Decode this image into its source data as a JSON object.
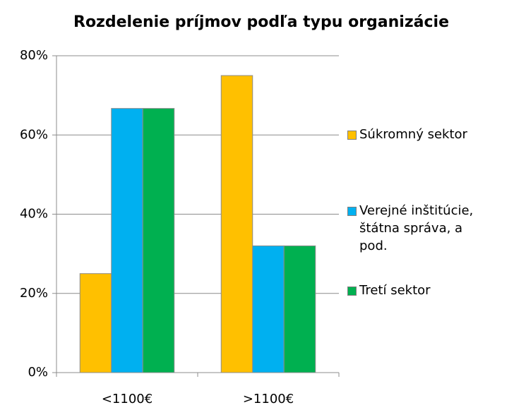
{
  "chart_data": {
    "type": "bar",
    "title": "Rozdelenie príjmov podľa typu organizácie",
    "categories": [
      "<1100€",
      ">1100€"
    ],
    "series": [
      {
        "name": "Súkromný sektor",
        "color": "#ffc000",
        "values": [
          25,
          75
        ]
      },
      {
        "name": "Verejné inštitúcie, štátna správa, a pod.",
        "color": "#00b0f0",
        "values": [
          66.7,
          32
        ]
      },
      {
        "name": "Tretí sektor",
        "color": "#00b050",
        "values": [
          66.7,
          32
        ]
      }
    ],
    "ylim": [
      0,
      80
    ],
    "yticks": [
      {
        "value": 0,
        "label": "0%"
      },
      {
        "value": 20,
        "label": "20%"
      },
      {
        "value": 40,
        "label": "40%"
      },
      {
        "value": 60,
        "label": "60%"
      },
      {
        "value": 80,
        "label": "80%"
      }
    ],
    "grid": true,
    "legend": "right"
  }
}
